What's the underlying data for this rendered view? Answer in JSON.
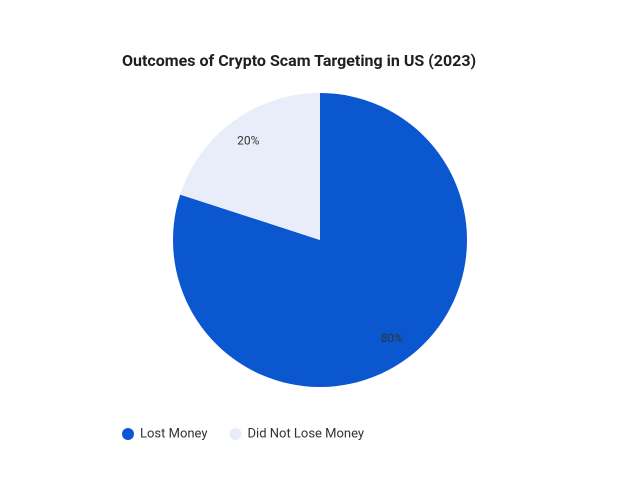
{
  "chart_data": {
    "type": "pie",
    "title": "Outcomes of Crypto Scam Targeting in US (2023)",
    "categories": [
      "Lost Money",
      "Did Not Lose Money"
    ],
    "values": [
      80,
      20
    ],
    "value_labels": [
      "80%",
      "20%"
    ],
    "colors": [
      "#0b57d0",
      "#e8edf9"
    ],
    "legend": "bottom-left"
  }
}
